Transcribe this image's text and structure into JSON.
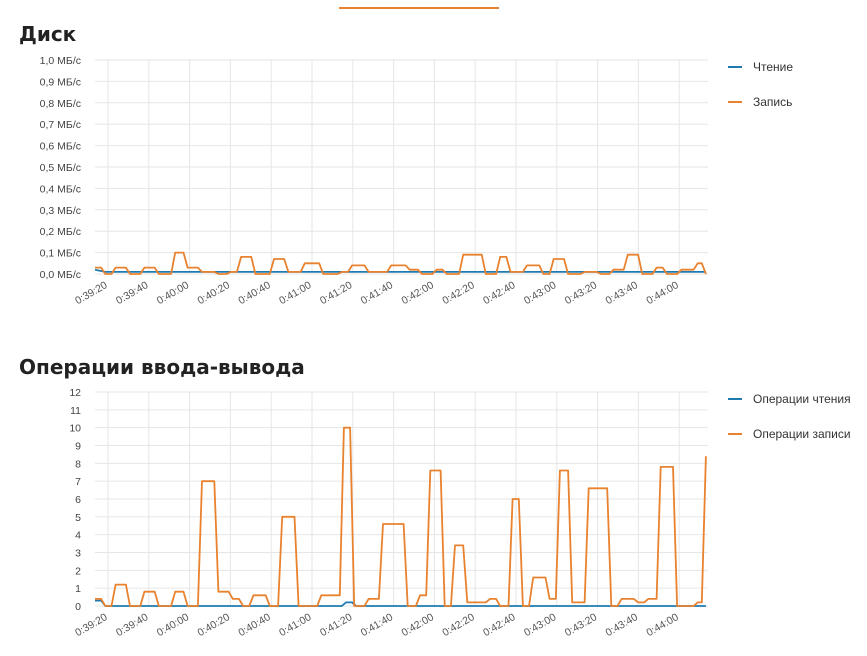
{
  "colors": {
    "read": "#1f7ab0",
    "write": "#e8822f",
    "grid": "#e6e6e6",
    "accent": "#e8822f"
  },
  "chart_data": [
    {
      "type": "line",
      "title": "Диск",
      "x_ticks": [
        "0:39:20",
        "0:39:40",
        "0:40:00",
        "0:40:20",
        "0:40:40",
        "0:41:00",
        "0:41:20",
        "0:41:40",
        "0:42:00",
        "0:42:20",
        "0:42:40",
        "0:43:00",
        "0:43:20",
        "0:43:40",
        "0:44:00"
      ],
      "y_ticks": [
        "0,0 МБ/с",
        "0,1 МБ/с",
        "0,2 МБ/с",
        "0,3 МБ/с",
        "0,4 МБ/с",
        "0,5 МБ/с",
        "0,6 МБ/с",
        "0,7 МБ/с",
        "0,8 МБ/с",
        "0,9 МБ/с",
        "1,0 МБ/с"
      ],
      "ylim": [
        0,
        1.0
      ],
      "x_unit": "seconds after 0:39:20",
      "xlim": [
        -5,
        293
      ],
      "series": [
        {
          "name": "Чтение",
          "color": "#1f7ab0",
          "x": [
            -5,
            0,
            292
          ],
          "y": [
            0.02,
            0.01,
            0.01
          ]
        },
        {
          "name": "Запись",
          "color": "#e8822f",
          "x": [
            -5,
            -2,
            0,
            3,
            5,
            10,
            12,
            17,
            19,
            24,
            26,
            32,
            34,
            38,
            40,
            45,
            47,
            53,
            55,
            59,
            61,
            64,
            66,
            71,
            73,
            80,
            82,
            87,
            89,
            95,
            97,
            104,
            106,
            113,
            115,
            118,
            120,
            126,
            128,
            137,
            139,
            146,
            148,
            152,
            154,
            159,
            161,
            164,
            166,
            172,
            174,
            183,
            185,
            190,
            192,
            195,
            197,
            203,
            205,
            211,
            213,
            216,
            218,
            223,
            225,
            231,
            233,
            239,
            241,
            245,
            247,
            252,
            254,
            259,
            261,
            266,
            268,
            271,
            273,
            278,
            280,
            286,
            288,
            290,
            292
          ],
          "y": [
            0.03,
            0.03,
            0,
            0,
            0.03,
            0.03,
            0,
            0,
            0.03,
            0.03,
            0,
            0,
            0.1,
            0.1,
            0.03,
            0.03,
            0.01,
            0.01,
            0,
            0,
            0.01,
            0.01,
            0.08,
            0.08,
            0,
            0,
            0.07,
            0.07,
            0.01,
            0.01,
            0.05,
            0.05,
            0,
            0,
            0.01,
            0.01,
            0.04,
            0.04,
            0.01,
            0.01,
            0.04,
            0.04,
            0.02,
            0.02,
            0,
            0,
            0.02,
            0.02,
            0,
            0,
            0.09,
            0.09,
            0,
            0,
            0.08,
            0.08,
            0.01,
            0.01,
            0.04,
            0.04,
            0,
            0,
            0.07,
            0.07,
            0,
            0,
            0.01,
            0.01,
            0,
            0,
            0.02,
            0.02,
            0.09,
            0.09,
            0,
            0,
            0.03,
            0.03,
            0,
            0,
            0.02,
            0.02,
            0.05,
            0.05,
            0
          ]
        }
      ]
    },
    {
      "type": "line",
      "title": "Операции ввода-вывода",
      "x_ticks": [
        "0:39:20",
        "0:39:40",
        "0:40:00",
        "0:40:20",
        "0:40:40",
        "0:41:00",
        "0:41:20",
        "0:41:40",
        "0:42:00",
        "0:42:20",
        "0:42:40",
        "0:43:00",
        "0:43:20",
        "0:43:40",
        "0:44:00"
      ],
      "y_ticks": [
        "0",
        "1",
        "2",
        "3",
        "4",
        "5",
        "6",
        "7",
        "8",
        "9",
        "10",
        "11",
        "12"
      ],
      "ylim": [
        0,
        12
      ],
      "x_unit": "seconds after 0:39:20",
      "xlim": [
        -5,
        293
      ],
      "series": [
        {
          "name": "Операции чтения",
          "color": "#1f7ab0",
          "x": [
            -5,
            -2,
            0,
            115,
            117,
            120,
            122,
            292
          ],
          "y": [
            0.3,
            0.3,
            0,
            0,
            0.2,
            0.2,
            0,
            0
          ]
        },
        {
          "name": "Операции записи",
          "color": "#e8822f",
          "x": [
            -5,
            -2,
            0,
            3,
            5,
            10,
            12,
            17,
            19,
            24,
            26,
            32,
            34,
            38,
            40,
            45,
            47,
            53,
            55,
            60,
            62,
            65,
            67,
            70,
            72,
            78,
            80,
            84,
            86,
            92,
            94,
            103,
            105,
            114,
            116,
            119,
            121,
            126,
            128,
            133,
            135,
            145,
            147,
            151,
            153,
            156,
            158,
            163,
            165,
            168,
            170,
            174,
            176,
            185,
            187,
            190,
            192,
            196,
            198,
            201,
            203,
            206,
            208,
            214,
            216,
            219,
            221,
            225,
            227,
            233,
            235,
            244,
            246,
            249,
            251,
            257,
            259,
            262,
            264,
            268,
            270,
            276,
            278,
            286,
            288,
            290,
            292
          ],
          "y": [
            0.4,
            0.4,
            0,
            0,
            1.2,
            1.2,
            0,
            0,
            0.8,
            0.8,
            0,
            0,
            0.8,
            0.8,
            0,
            0,
            7.0,
            7.0,
            0.8,
            0.8,
            0.4,
            0.4,
            0,
            0,
            0.6,
            0.6,
            0,
            0,
            5.0,
            5.0,
            0,
            0,
            0.6,
            0.6,
            10.0,
            10.0,
            0,
            0,
            0.4,
            0.4,
            4.6,
            4.6,
            0,
            0,
            0.6,
            0.6,
            7.6,
            7.6,
            0,
            0,
            3.4,
            3.4,
            0.2,
            0.2,
            0.4,
            0.4,
            0,
            0,
            6.0,
            6.0,
            0,
            0,
            1.6,
            1.6,
            0.4,
            0.4,
            7.6,
            7.6,
            0.2,
            0.2,
            6.6,
            6.6,
            0,
            0,
            0.4,
            0.4,
            0.2,
            0.2,
            0.4,
            0.4,
            7.8,
            7.8,
            0,
            0,
            0.2,
            0.2,
            8.4
          ]
        }
      ]
    }
  ]
}
